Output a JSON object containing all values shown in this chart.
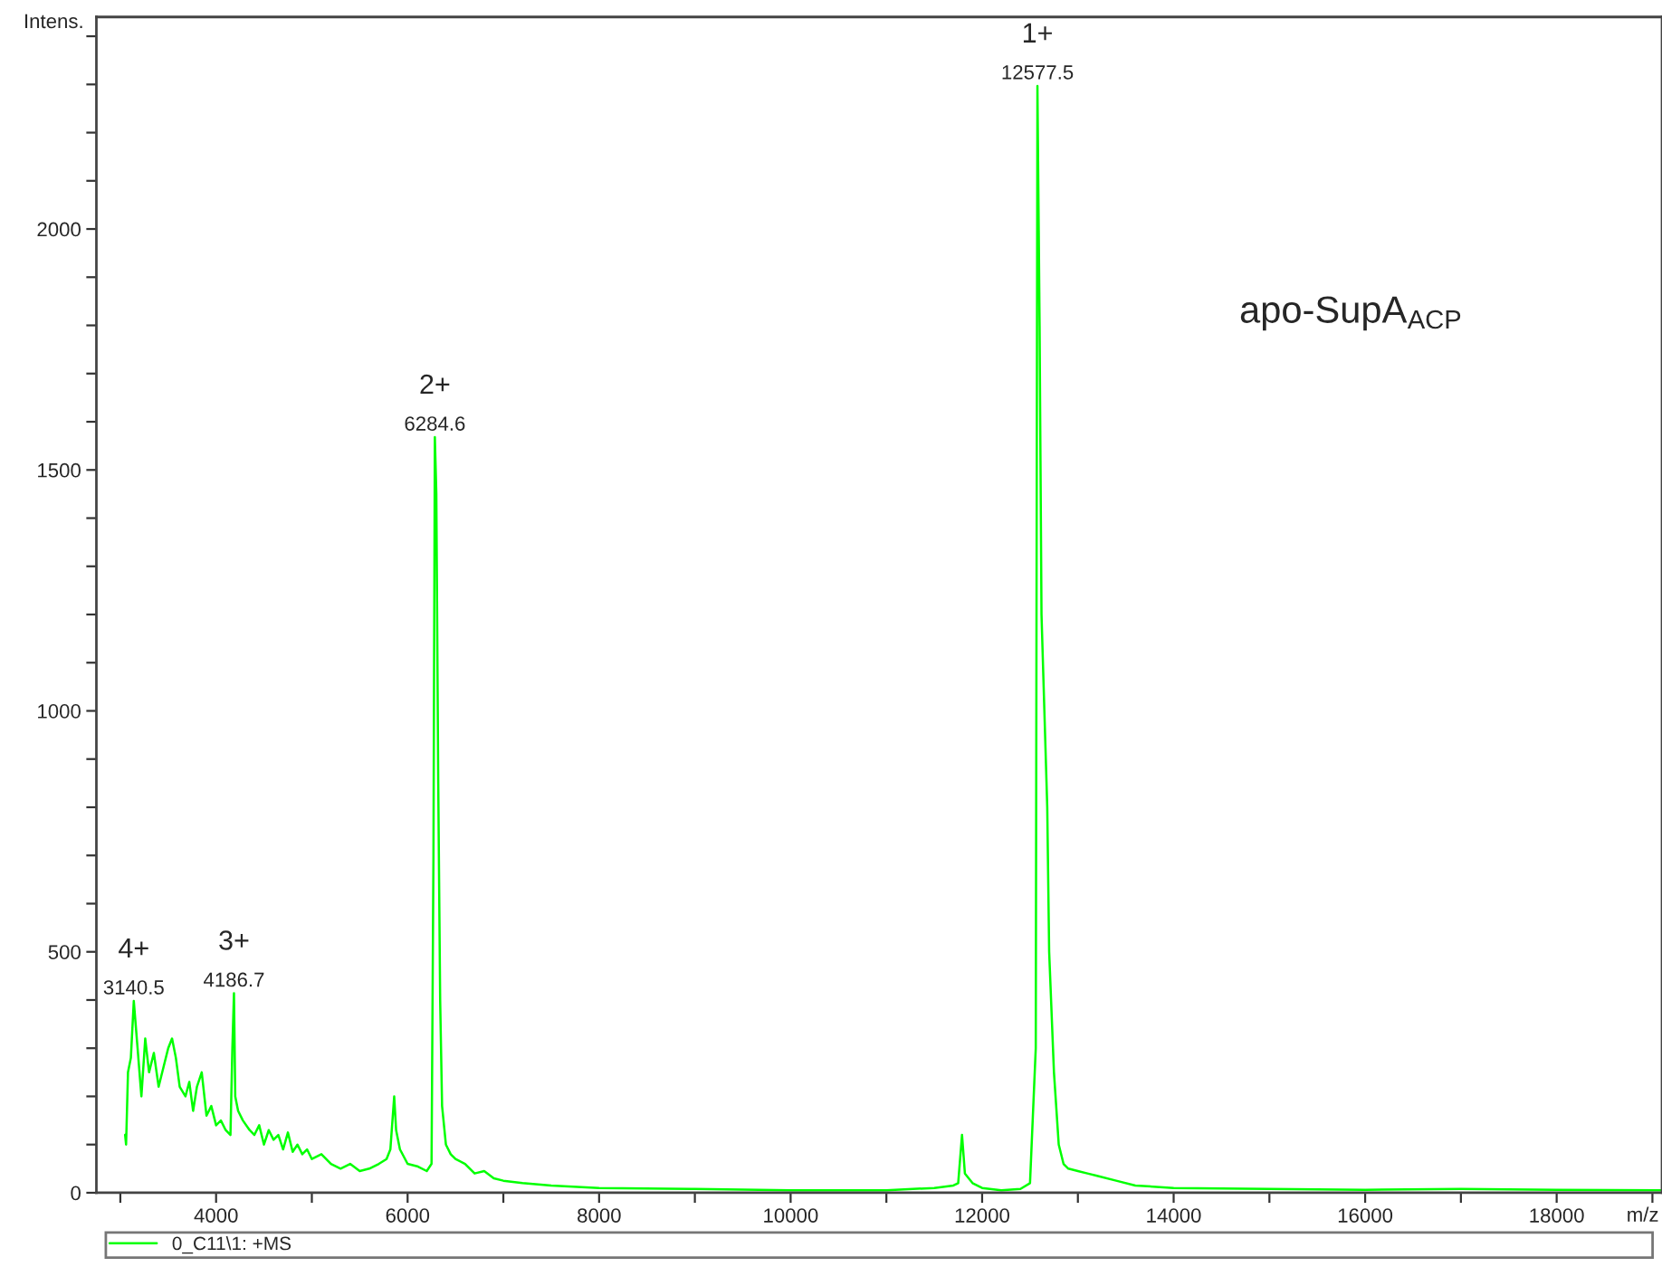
{
  "chart_data": {
    "type": "line",
    "xlabel": "m/z",
    "ylabel": "Intens.",
    "x": [
      3050,
      3060,
      3080,
      3110,
      3140.5,
      3180,
      3220,
      3260,
      3300,
      3350,
      3400,
      3450,
      3500,
      3540,
      3580,
      3620,
      3680,
      3720,
      3760,
      3800,
      3850,
      3900,
      3950,
      4000,
      4050,
      4100,
      4150,
      4170,
      4186.7,
      4200,
      4230,
      4280,
      4350,
      4400,
      4450,
      4500,
      4550,
      4600,
      4650,
      4700,
      4750,
      4800,
      4850,
      4900,
      4950,
      5000,
      5100,
      5200,
      5300,
      5400,
      5500,
      5600,
      5700,
      5780,
      5820,
      5860,
      5880,
      5920,
      6000,
      6100,
      6200,
      6250,
      6270,
      6284.6,
      6300,
      6320,
      6340,
      6360,
      6400,
      6450,
      6500,
      6600,
      6700,
      6800,
      6900,
      7000,
      7200,
      7500,
      8000,
      9000,
      10000,
      11000,
      11500,
      11700,
      11750,
      11790,
      11820,
      11900,
      12000,
      12200,
      12400,
      12500,
      12560,
      12577.5,
      12600,
      12620,
      12650,
      12680,
      12700,
      12750,
      12800,
      12850,
      12900,
      13000,
      13100,
      13200,
      13400,
      13600,
      14000,
      15000,
      16000,
      17000,
      18000,
      19100
    ],
    "series": [
      {
        "name": "0_C11\\1: +MS",
        "color": "#00ff00",
        "values": [
          120,
          100,
          250,
          280,
          398,
          300,
          200,
          320,
          250,
          290,
          220,
          260,
          300,
          320,
          280,
          220,
          200,
          230,
          170,
          220,
          250,
          160,
          180,
          140,
          150,
          130,
          120,
          300,
          414,
          200,
          170,
          150,
          130,
          120,
          140,
          100,
          130,
          110,
          120,
          90,
          125,
          85,
          100,
          80,
          90,
          70,
          80,
          60,
          50,
          60,
          45,
          50,
          60,
          70,
          90,
          200,
          130,
          90,
          60,
          55,
          45,
          60,
          700,
          1568,
          1450,
          850,
          400,
          180,
          100,
          80,
          70,
          60,
          40,
          45,
          30,
          25,
          20,
          15,
          10,
          8,
          5,
          5,
          10,
          15,
          20,
          120,
          40,
          20,
          10,
          5,
          8,
          20,
          300,
          2297,
          1800,
          1200,
          1000,
          800,
          500,
          250,
          100,
          60,
          50,
          45,
          40,
          35,
          25,
          15,
          10,
          8,
          6,
          8,
          6,
          5
        ]
      }
    ],
    "xlim": [
      2750,
      19100
    ],
    "ylim": [
      0,
      2440
    ],
    "xticks": [
      {
        "value": 3000,
        "label": null
      },
      4000,
      {
        "value": 5000,
        "label": null
      },
      6000,
      {
        "value": 7000,
        "label": null
      },
      8000,
      {
        "value": 9000,
        "label": null
      },
      10000,
      {
        "value": 11000,
        "label": null
      },
      12000,
      {
        "value": 13000,
        "label": null
      },
      14000,
      {
        "value": 15000,
        "label": null
      },
      16000,
      {
        "value": 17000,
        "label": null
      },
      18000,
      {
        "value": 19000,
        "label": null
      }
    ],
    "yticks": [
      0,
      {
        "value": 100,
        "label": null
      },
      {
        "value": 200,
        "label": null
      },
      {
        "value": 300,
        "label": null
      },
      {
        "value": 400,
        "label": null
      },
      500,
      {
        "value": 600,
        "label": null
      },
      {
        "value": 700,
        "label": null
      },
      {
        "value": 800,
        "label": null
      },
      {
        "value": 900,
        "label": null
      },
      1000,
      {
        "value": 1100,
        "label": null
      },
      {
        "value": 1200,
        "label": null
      },
      {
        "value": 1300,
        "label": null
      },
      {
        "value": 1400,
        "label": null
      },
      1500,
      {
        "value": 1600,
        "label": null
      },
      {
        "value": 1700,
        "label": null
      },
      {
        "value": 1800,
        "label": null
      },
      {
        "value": 1900,
        "label": null
      },
      2000,
      {
        "value": 2100,
        "label": null
      },
      {
        "value": 2200,
        "label": null
      },
      {
        "value": 2300,
        "label": null
      },
      {
        "value": 2400,
        "label": null
      }
    ],
    "annotations": [
      {
        "text": "3140.5",
        "x": 3140.5,
        "y": 398
      },
      {
        "text": "4+",
        "x": 3140.5,
        "y": 398
      },
      {
        "text": "4186.7",
        "x": 4186.7,
        "y": 414
      },
      {
        "text": "3+",
        "x": 4186.7,
        "y": 414
      },
      {
        "text": "6284.6",
        "x": 6284.6,
        "y": 1568
      },
      {
        "text": "2+",
        "x": 6284.6,
        "y": 1568
      },
      {
        "text": "12577.5",
        "x": 12577.5,
        "y": 2297
      },
      {
        "text": "1+",
        "x": 12577.5,
        "y": 2297
      },
      "apo-SupA$_{ACP}$"
    ],
    "grid": false,
    "legend": "bottom",
    "marker": "none",
    "line_style": "solid"
  }
}
